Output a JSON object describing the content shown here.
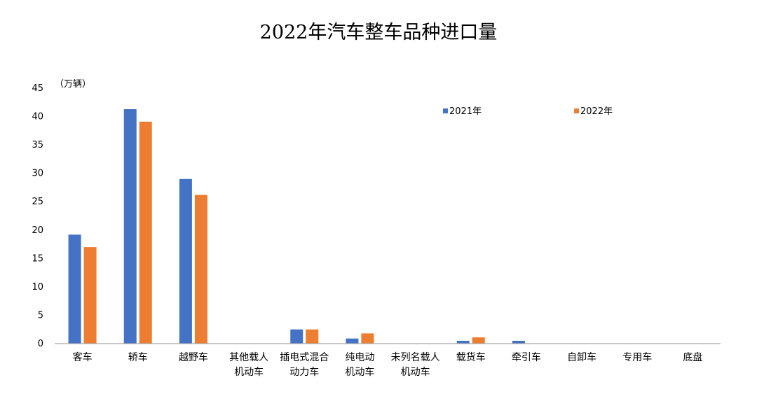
{
  "chart_data": {
    "type": "bar",
    "title": "2022年汽车整车品种进口量",
    "unit_label": "（万辆）",
    "xlabel": "",
    "ylabel": "",
    "ylim": [
      0,
      45
    ],
    "y_ticks": [
      "0",
      "5",
      "10",
      "15",
      "20",
      "25",
      "30",
      "35",
      "40",
      "45"
    ],
    "grid": false,
    "legend_position": "top-right",
    "categories": [
      [
        "客车"
      ],
      [
        "轿车"
      ],
      [
        "越野车"
      ],
      [
        "其他载人",
        "机动车"
      ],
      [
        "插电式混合",
        "动力车"
      ],
      [
        "纯电动",
        "机动车"
      ],
      [
        "未列名载人",
        "机动车"
      ],
      [
        "载货车"
      ],
      [
        "牵引车"
      ],
      [
        "自卸车"
      ],
      [
        "专用车"
      ],
      [
        "底盘"
      ]
    ],
    "series": [
      {
        "name": "2021年",
        "color": "#4472C4",
        "values": [
          19.2,
          41.3,
          29.0,
          0,
          2.5,
          0.9,
          0,
          0.5,
          0.5,
          0,
          0,
          0
        ]
      },
      {
        "name": "2022年",
        "color": "#ED7D31",
        "values": [
          17.0,
          39.1,
          26.2,
          0,
          2.5,
          1.8,
          0,
          1.1,
          0,
          0,
          0,
          0
        ]
      }
    ]
  }
}
